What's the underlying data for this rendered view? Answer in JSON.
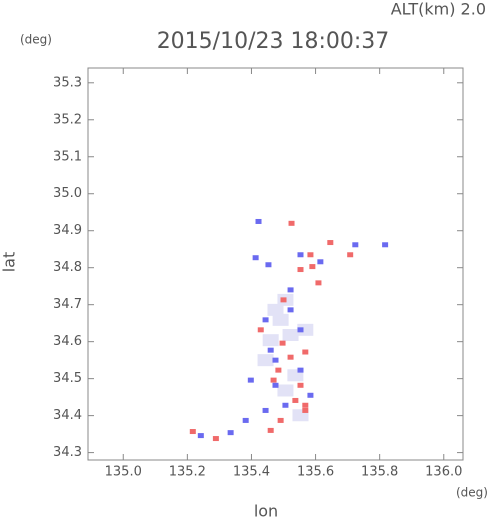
{
  "chart_data": {
    "type": "scatter",
    "title": "2015/10/23 18:00:37",
    "subtitle": "ALT(km) 2.0",
    "x_label": "lon",
    "y_label": "lat",
    "x_unit": "(deg)",
    "y_unit": "(deg)",
    "xlim": [
      134.89,
      136.06
    ],
    "ylim": [
      34.28,
      35.34
    ],
    "xticks": [
      {
        "value": 135.0,
        "label": "135.0"
      },
      135.2,
      135.4,
      135.6,
      135.8,
      {
        "value": 136.0,
        "label": "136.0"
      }
    ],
    "yticks": [
      34.3,
      34.4,
      34.5,
      34.6,
      34.7,
      34.8,
      34.9,
      {
        "value": 35.0,
        "label": "35.0"
      },
      35.1,
      35.2,
      35.3
    ],
    "series": [
      {
        "color": "#e2e2f6",
        "x": [
          135.491,
          135.46,
          135.522,
          135.537,
          135.506,
          135.553,
          135.475,
          135.506,
          135.568,
          135.444
        ],
        "y": [
          34.659,
          34.604,
          34.618,
          34.509,
          34.468,
          34.401,
          34.686,
          34.713,
          34.632,
          34.55
        ]
      },
      {
        "color": "#f06a6a",
        "x": [
          135.525,
          135.553,
          135.609,
          135.497,
          135.568,
          135.522,
          135.469,
          135.553,
          135.568,
          135.491,
          135.46,
          135.217,
          135.289,
          135.584,
          135.646,
          135.5,
          135.429,
          135.537,
          135.568,
          135.484,
          135.59,
          135.708
        ],
        "y": [
          34.92,
          34.795,
          34.759,
          34.596,
          34.572,
          34.558,
          34.496,
          34.482,
          34.428,
          34.387,
          34.36,
          34.357,
          34.338,
          34.835,
          34.868,
          34.713,
          34.632,
          34.441,
          34.414,
          34.523,
          34.803,
          34.835
        ]
      },
      {
        "color": "#6a6af0",
        "x": [
          135.422,
          135.413,
          135.453,
          135.553,
          135.615,
          135.444,
          135.522,
          135.46,
          135.553,
          135.398,
          135.475,
          135.506,
          135.444,
          135.553,
          135.584,
          135.382,
          135.242,
          135.335,
          135.724,
          135.817,
          135.522,
          135.475
        ],
        "y": [
          34.925,
          34.827,
          34.808,
          34.835,
          34.816,
          34.659,
          34.686,
          34.577,
          34.632,
          34.496,
          34.482,
          34.428,
          34.414,
          34.523,
          34.455,
          34.387,
          34.346,
          34.354,
          34.862,
          34.862,
          34.74,
          34.55
        ]
      }
    ]
  }
}
